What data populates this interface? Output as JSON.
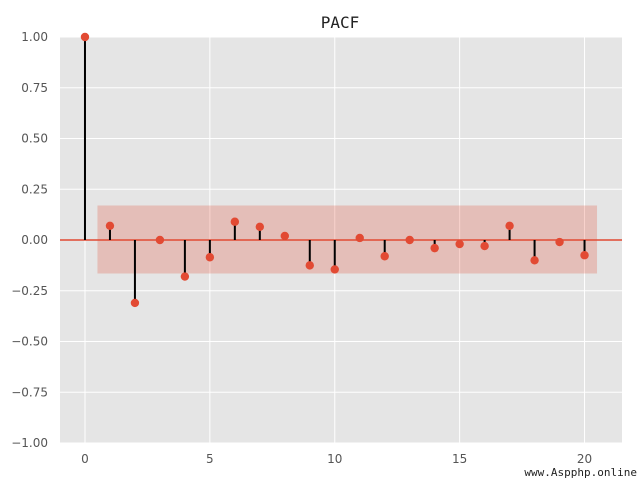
{
  "chart_data": {
    "type": "stem",
    "title": "PACF",
    "xlabel": "",
    "ylabel": "",
    "xlim": [
      -1,
      21.5
    ],
    "ylim": [
      -1.0,
      1.0
    ],
    "x_ticks": [
      0,
      5,
      10,
      15,
      20
    ],
    "x_tick_labels": [
      "0",
      "5",
      "10",
      "15",
      "20"
    ],
    "y_ticks": [
      -1.0,
      -0.75,
      -0.5,
      -0.25,
      0.0,
      0.25,
      0.5,
      0.75,
      1.0
    ],
    "y_tick_labels": [
      "−1.00",
      "−0.75",
      "−0.50",
      "−0.25",
      "0.00",
      "0.25",
      "0.50",
      "0.75",
      "1.00"
    ],
    "grid": true,
    "legend": "none",
    "lags": [
      0,
      1,
      2,
      3,
      4,
      5,
      6,
      7,
      8,
      9,
      10,
      11,
      12,
      13,
      14,
      15,
      16,
      17,
      18,
      19,
      20
    ],
    "values": [
      1.0,
      0.07,
      -0.31,
      0.0,
      -0.18,
      -0.085,
      0.09,
      0.065,
      0.02,
      -0.125,
      -0.145,
      0.01,
      -0.08,
      0.0,
      -0.04,
      -0.02,
      -0.03,
      0.07,
      -0.1,
      -0.01,
      -0.075
    ],
    "confidence_interval": {
      "lower": -0.165,
      "upper": 0.17,
      "x_from": 0.5,
      "x_to": 20.5
    },
    "colors": {
      "marker": "#e24a33",
      "stem": "#000000",
      "confidence_band": "#e24a33",
      "zero_line": "#e24a33",
      "plot_background": "#e5e5e5",
      "grid": "#ffffff"
    }
  },
  "watermark": "www.Aspphp.online"
}
